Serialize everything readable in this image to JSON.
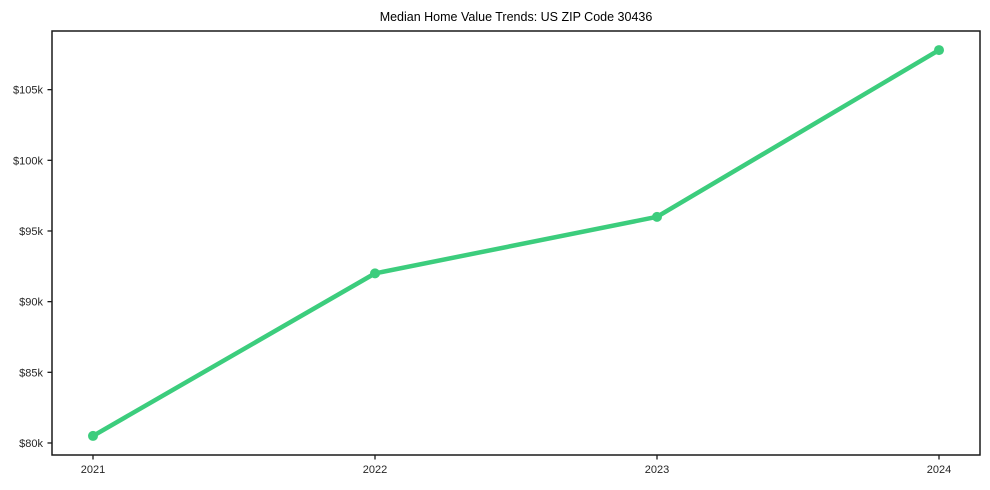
{
  "chart_data": {
    "type": "line",
    "title": "Median Home Value Trends: US ZIP Code 30436",
    "categories": [
      "2021",
      "2022",
      "2023",
      "2024"
    ],
    "series": [
      {
        "name": "Median Home Value",
        "values": [
          80500,
          92000,
          96000,
          107800
        ]
      }
    ],
    "xlabel": "",
    "ylabel": "",
    "ylim": [
      79150,
      109150
    ],
    "y_ticks": [
      {
        "value": 80000,
        "label": "$80k"
      },
      {
        "value": 85000,
        "label": "$85k"
      },
      {
        "value": 90000,
        "label": "$90k"
      },
      {
        "value": 95000,
        "label": "$95k"
      },
      {
        "value": 100000,
        "label": "$100k"
      },
      {
        "value": 105000,
        "label": "$105k"
      }
    ],
    "grid": false,
    "legend_position": "none",
    "line_color": "#3ccd7d",
    "marker": "circle",
    "background_color": "#ffffff",
    "axis_color": "#1a1a1a",
    "tick_label_color": "#262626"
  }
}
